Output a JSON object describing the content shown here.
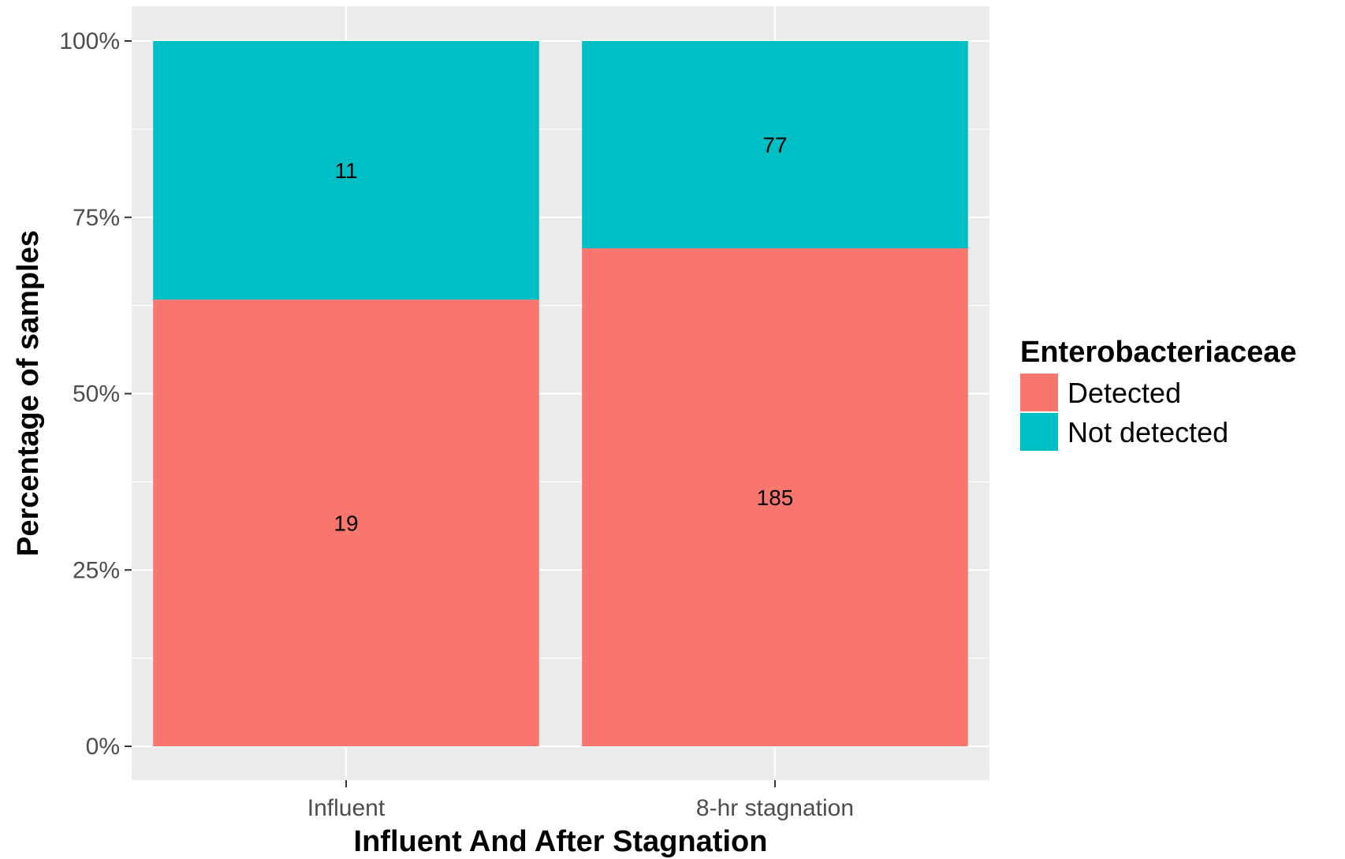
{
  "chart_data": {
    "type": "bar",
    "stacked": true,
    "normalized": true,
    "categories": [
      "Influent",
      "8-hr stagnation"
    ],
    "series": [
      {
        "name": "Detected",
        "values": [
          19,
          185
        ],
        "color": "#F8766D"
      },
      {
        "name": "Not detected",
        "values": [
          11,
          77
        ],
        "color": "#00BFC4"
      }
    ],
    "xlabel": "Influent And After Stagnation",
    "ylabel": "Percentage of samples",
    "ylim": [
      0,
      1
    ],
    "yticks": [
      0,
      0.25,
      0.5,
      0.75,
      1
    ],
    "ytick_labels": [
      "0%",
      "25%",
      "50%",
      "75%",
      "100%"
    ],
    "legend": {
      "title": "Enterobacteriaceae",
      "position": "right"
    },
    "grid": true,
    "panel_background": "#EBEBEB",
    "grid_color": "#FFFFFF"
  }
}
